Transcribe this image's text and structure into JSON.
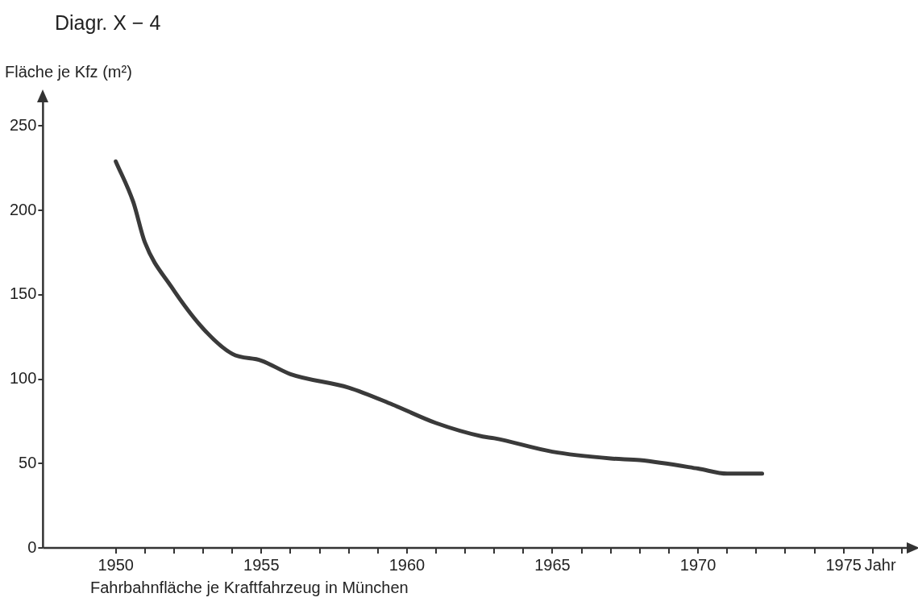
{
  "chart_data": {
    "type": "line",
    "title": "Diagr. X − 4",
    "ylabel": "Fläche je Kfz (m²)",
    "xlabel": "Jahr",
    "annotations": [
      "Fahrbahnfläche je Kraftfahrzeug in München"
    ],
    "x": [
      1950.0,
      1950.6,
      1951.0,
      1951.9,
      1953.0,
      1954.0,
      1955.0,
      1956.0,
      1958.0,
      1959.5,
      1961.0,
      1962.6,
      1963.0,
      1965.0,
      1967.0,
      1968.0,
      1970.0,
      1971.0,
      1972.2
    ],
    "series": [
      {
        "color": "#3a3a3a",
        "values": [
          229,
          205,
          181,
          155,
          130,
          115,
          111,
          103,
          95,
          85,
          74,
          66,
          65,
          57,
          53,
          52,
          47,
          44,
          44
        ]
      }
    ],
    "xlim": [
      1947.5,
      1977.5
    ],
    "xticks": [
      1950,
      {
        "value": 1951,
        "label": null
      },
      {
        "value": 1952,
        "label": null
      },
      {
        "value": 1953,
        "label": null
      },
      {
        "value": 1954,
        "label": null
      },
      1955,
      {
        "value": 1956,
        "label": null
      },
      {
        "value": 1957,
        "label": null
      },
      {
        "value": 1958,
        "label": null
      },
      {
        "value": 1959,
        "label": null
      },
      1960,
      {
        "value": 1961,
        "label": null
      },
      {
        "value": 1962,
        "label": null
      },
      {
        "value": 1963,
        "label": null
      },
      {
        "value": 1964,
        "label": null
      },
      1965,
      {
        "value": 1966,
        "label": null
      },
      {
        "value": 1967,
        "label": null
      },
      {
        "value": 1968,
        "label": null
      },
      {
        "value": 1969,
        "label": null
      },
      1970,
      {
        "value": 1971,
        "label": null
      },
      {
        "value": 1972,
        "label": null
      },
      {
        "value": 1973,
        "label": null
      },
      {
        "value": 1974,
        "label": null
      },
      1975,
      {
        "value": 1976,
        "label": null
      },
      {
        "value": 1977,
        "label": null
      }
    ],
    "ylim": [
      0,
      265
    ],
    "yticks": [
      0,
      50,
      100,
      150,
      200,
      250
    ],
    "grid": false,
    "legend": false,
    "marker": "none",
    "line_style": "solid"
  }
}
